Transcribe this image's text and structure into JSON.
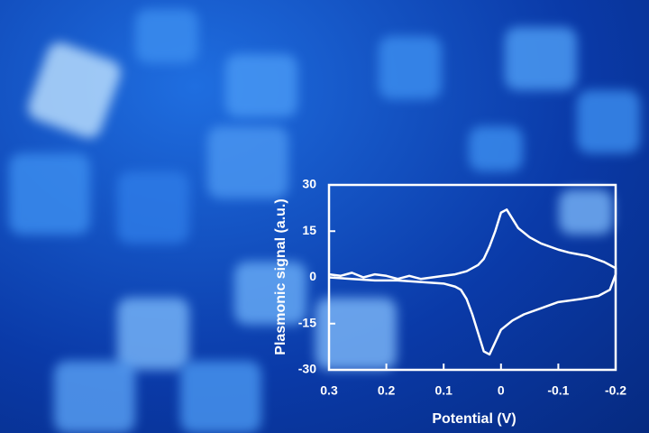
{
  "chart_data": {
    "type": "line",
    "xlabel": "Potential (V)",
    "ylabel": "Plasmonic signal (a.u.)",
    "x": [
      0.3,
      0.28,
      0.26,
      0.24,
      0.22,
      0.2,
      0.18,
      0.16,
      0.14,
      0.12,
      0.1,
      0.08,
      0.06,
      0.04,
      0.03,
      0.02,
      0.01,
      0.0,
      -0.01,
      -0.02,
      -0.03,
      -0.05,
      -0.07,
      -0.1,
      -0.12,
      -0.15,
      -0.18,
      -0.2,
      -0.2,
      -0.19,
      -0.17,
      -0.14,
      -0.1,
      -0.07,
      -0.04,
      -0.02,
      0.0,
      0.01,
      0.02,
      0.03,
      0.04,
      0.05,
      0.06,
      0.07,
      0.08,
      0.1,
      0.14,
      0.18,
      0.22,
      0.26,
      0.3
    ],
    "values": [
      1,
      0.5,
      1.5,
      0,
      1,
      0.5,
      -0.5,
      0.5,
      -0.5,
      0,
      0.5,
      1,
      2,
      4,
      6,
      10,
      15,
      21,
      22,
      19,
      16,
      13,
      11,
      9,
      8,
      7,
      5,
      3,
      1,
      -4,
      -6,
      -7,
      -8,
      -10,
      -12,
      -14,
      -17,
      -21,
      -25,
      -24,
      -18,
      -12,
      -7,
      -4,
      -3,
      -2,
      -1.5,
      -1,
      -1,
      -0.5,
      0
    ],
    "color": "#ffffff",
    "xlim": [
      0.3,
      -0.2
    ],
    "xticks": [
      0.3,
      0.2,
      0.1,
      0,
      -0.1,
      -0.2
    ],
    "ylim": [
      -30,
      30
    ],
    "yticks": [
      -30,
      -15,
      0,
      15,
      30
    ]
  }
}
